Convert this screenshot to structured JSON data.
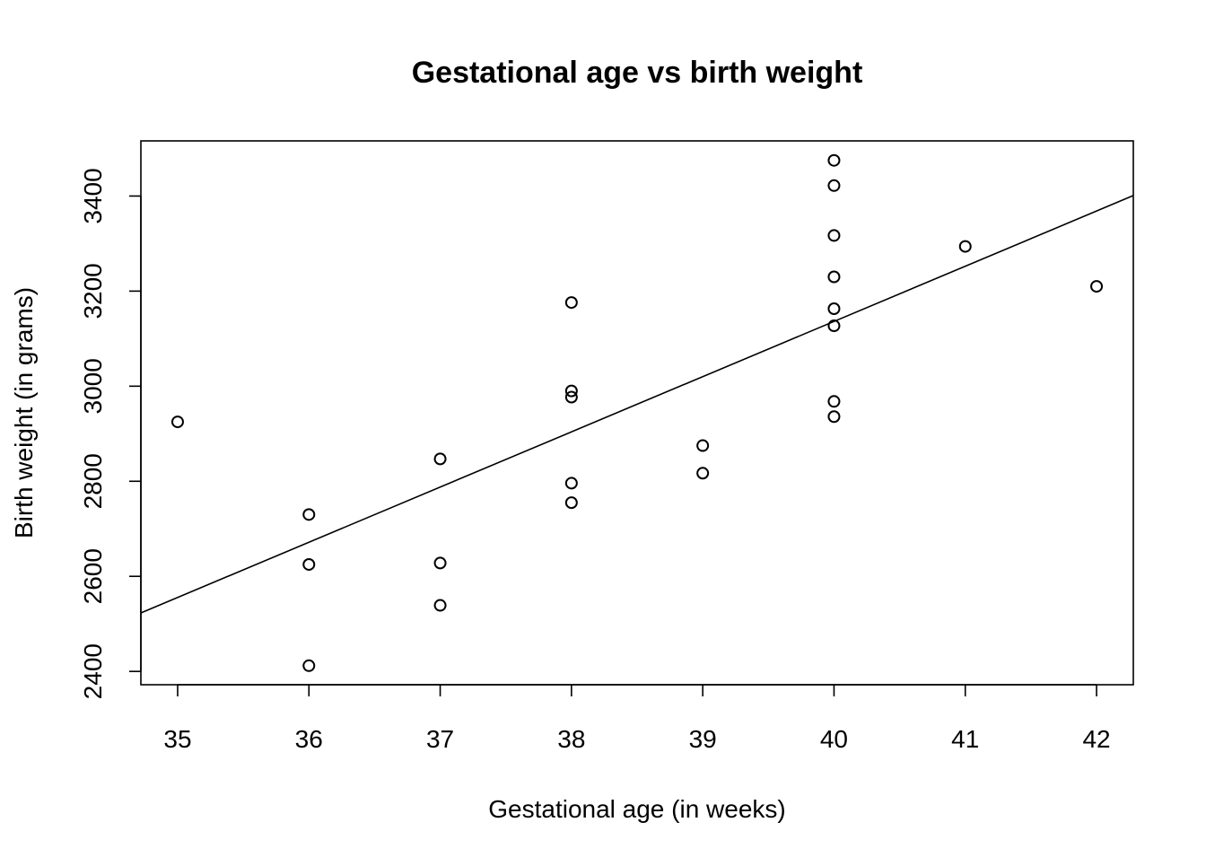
{
  "chart_data": {
    "type": "scatter",
    "title": "Gestational age vs birth weight",
    "xlabel": "Gestational age (in weeks)",
    "ylabel": "Birth weight (in grams)",
    "xlim": [
      34.72,
      42.28
    ],
    "ylim": [
      2372,
      3516
    ],
    "x_ticks": [
      35,
      36,
      37,
      38,
      39,
      40,
      41,
      42
    ],
    "y_ticks": [
      2400,
      2600,
      2800,
      3000,
      3200,
      3400
    ],
    "grid": false,
    "legend": "none",
    "points": [
      {
        "x": 35,
        "y": 2925
      },
      {
        "x": 36,
        "y": 2730
      },
      {
        "x": 36,
        "y": 2625
      },
      {
        "x": 36,
        "y": 2412
      },
      {
        "x": 37,
        "y": 2847
      },
      {
        "x": 37,
        "y": 2628
      },
      {
        "x": 37,
        "y": 2539
      },
      {
        "x": 38,
        "y": 3176
      },
      {
        "x": 38,
        "y": 2990
      },
      {
        "x": 38,
        "y": 2977
      },
      {
        "x": 38,
        "y": 2796
      },
      {
        "x": 38,
        "y": 2755
      },
      {
        "x": 39,
        "y": 2875
      },
      {
        "x": 39,
        "y": 2817
      },
      {
        "x": 40,
        "y": 3475
      },
      {
        "x": 40,
        "y": 3422
      },
      {
        "x": 40,
        "y": 3317
      },
      {
        "x": 40,
        "y": 3230
      },
      {
        "x": 40,
        "y": 3163
      },
      {
        "x": 40,
        "y": 3127
      },
      {
        "x": 40,
        "y": 2968
      },
      {
        "x": 40,
        "y": 2936
      },
      {
        "x": 41,
        "y": 3294
      },
      {
        "x": 42,
        "y": 3210
      }
    ],
    "regression_line": {
      "x": [
        34.72,
        42.28
      ],
      "y": [
        2523,
        3401
      ]
    },
    "colors": {
      "points": "#000000",
      "line": "#000000",
      "background": "#ffffff"
    }
  }
}
